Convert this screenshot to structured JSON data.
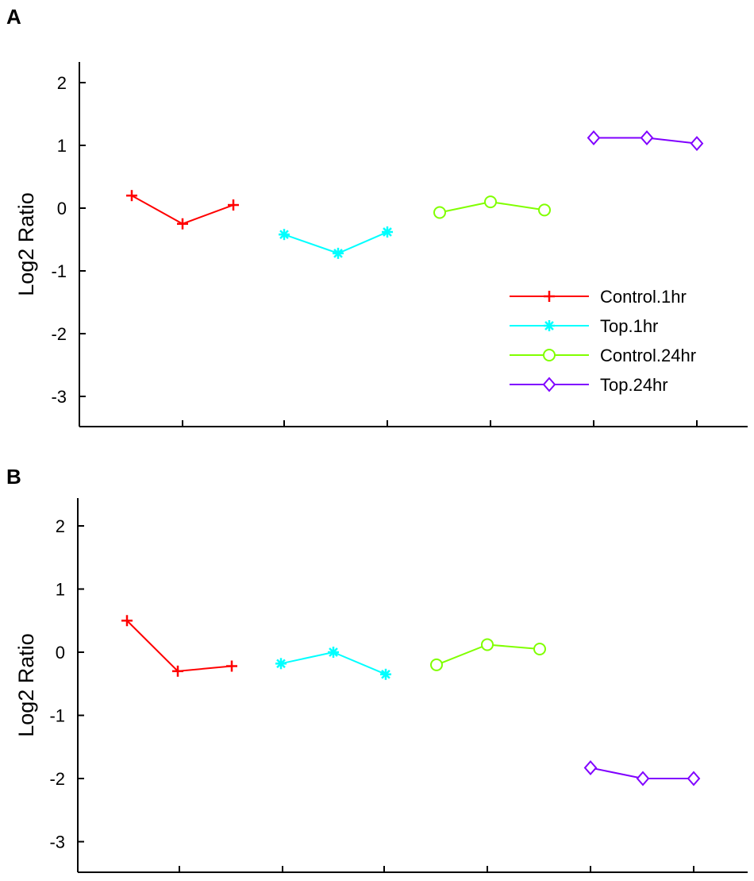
{
  "chart_data": [
    {
      "panel": "A",
      "type": "line",
      "ylabel": "Log2 Ratio",
      "xlabel": "",
      "ylim": [
        -3.5,
        2.3
      ],
      "yticks": [
        2,
        1,
        0,
        -1,
        -2,
        -3
      ],
      "series": [
        {
          "name": "Control.1hr",
          "color": "#ff0000",
          "marker": "plus",
          "x": [
            1,
            2,
            3
          ],
          "values": [
            0.2,
            -0.25,
            0.05
          ]
        },
        {
          "name": "Top.1hr",
          "color": "#00ffff",
          "marker": "asterisk",
          "x": [
            4,
            5,
            6
          ],
          "values": [
            -0.42,
            -0.72,
            -0.38
          ]
        },
        {
          "name": "Control.24hr",
          "color": "#80ff00",
          "marker": "circle",
          "x": [
            7,
            8,
            9
          ],
          "values": [
            -0.07,
            0.1,
            -0.03
          ]
        },
        {
          "name": "Top.24hr",
          "color": "#8000ff",
          "marker": "diamond",
          "x": [
            10,
            11,
            12
          ],
          "values": [
            1.12,
            1.12,
            1.03
          ]
        }
      ],
      "legend": "right"
    },
    {
      "panel": "B",
      "type": "line",
      "ylabel": "Log2 Ratio",
      "xlabel": "",
      "ylim": [
        -3.5,
        2.3
      ],
      "yticks": [
        2,
        1,
        0,
        -1,
        -2,
        -3
      ],
      "series": [
        {
          "name": "Control.1hr",
          "color": "#ff0000",
          "marker": "plus",
          "x": [
            1,
            2,
            3
          ],
          "values": [
            0.5,
            -0.3,
            -0.22
          ]
        },
        {
          "name": "Top.1hr",
          "color": "#00ffff",
          "marker": "asterisk",
          "x": [
            4,
            5,
            6
          ],
          "values": [
            -0.18,
            0.0,
            -0.35
          ]
        },
        {
          "name": "Control.24hr",
          "color": "#80ff00",
          "marker": "circle",
          "x": [
            7,
            8,
            9
          ],
          "values": [
            -0.2,
            0.12,
            0.05
          ]
        },
        {
          "name": "Top.24hr",
          "color": "#8000ff",
          "marker": "diamond",
          "x": [
            10,
            11,
            12
          ],
          "values": [
            -1.83,
            -2.0,
            -2.0
          ]
        }
      ]
    }
  ]
}
